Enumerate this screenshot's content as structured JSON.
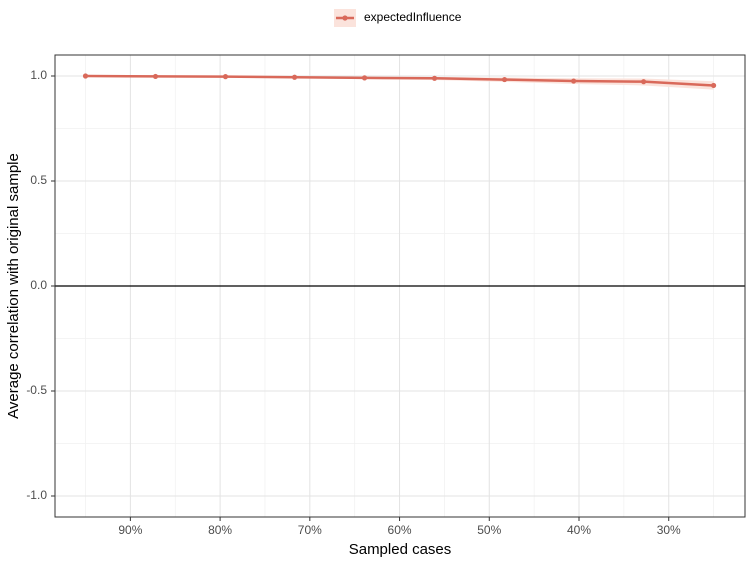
{
  "chart_data": {
    "type": "line",
    "x_label": "Sampled cases",
    "y_label": "Average correlation with original sample",
    "x": [
      95,
      87.2,
      79.4,
      71.7,
      63.9,
      56.1,
      48.3,
      40.6,
      32.8,
      25
    ],
    "series": [
      {
        "name": "expectedInfluence",
        "color": "#d9695a",
        "band_color": "#fbe3dc",
        "values": [
          1.0,
          0.998,
          0.997,
          0.994,
          0.991,
          0.989,
          0.983,
          0.976,
          0.973,
          0.955
        ],
        "lower": [
          0.999,
          0.996,
          0.994,
          0.989,
          0.985,
          0.981,
          0.972,
          0.962,
          0.955,
          0.935
        ],
        "upper": [
          1.0,
          1.0,
          0.999,
          0.998,
          0.996,
          0.995,
          0.993,
          0.989,
          0.988,
          0.975
        ]
      }
    ],
    "xlim": [
      98.4,
      21.5
    ],
    "xticks": [
      {
        "value": 90,
        "label": "90%"
      },
      {
        "value": 80,
        "label": "80%"
      },
      {
        "value": 70,
        "label": "70%"
      },
      {
        "value": 60,
        "label": "60%"
      },
      {
        "value": 50,
        "label": "50%"
      },
      {
        "value": 40,
        "label": "40%"
      },
      {
        "value": 30,
        "label": "30%"
      }
    ],
    "ylim": [
      -1.1,
      1.1
    ],
    "yticks": [
      {
        "value": -1,
        "label": "-1.0"
      },
      {
        "value": -0.5,
        "label": "-0.5"
      },
      {
        "value": 0,
        "label": "0.0"
      },
      {
        "value": 0.5,
        "label": "0.5"
      },
      {
        "value": 1,
        "label": "1.0"
      }
    ],
    "hline": 0,
    "grid": true,
    "legend": "top"
  }
}
